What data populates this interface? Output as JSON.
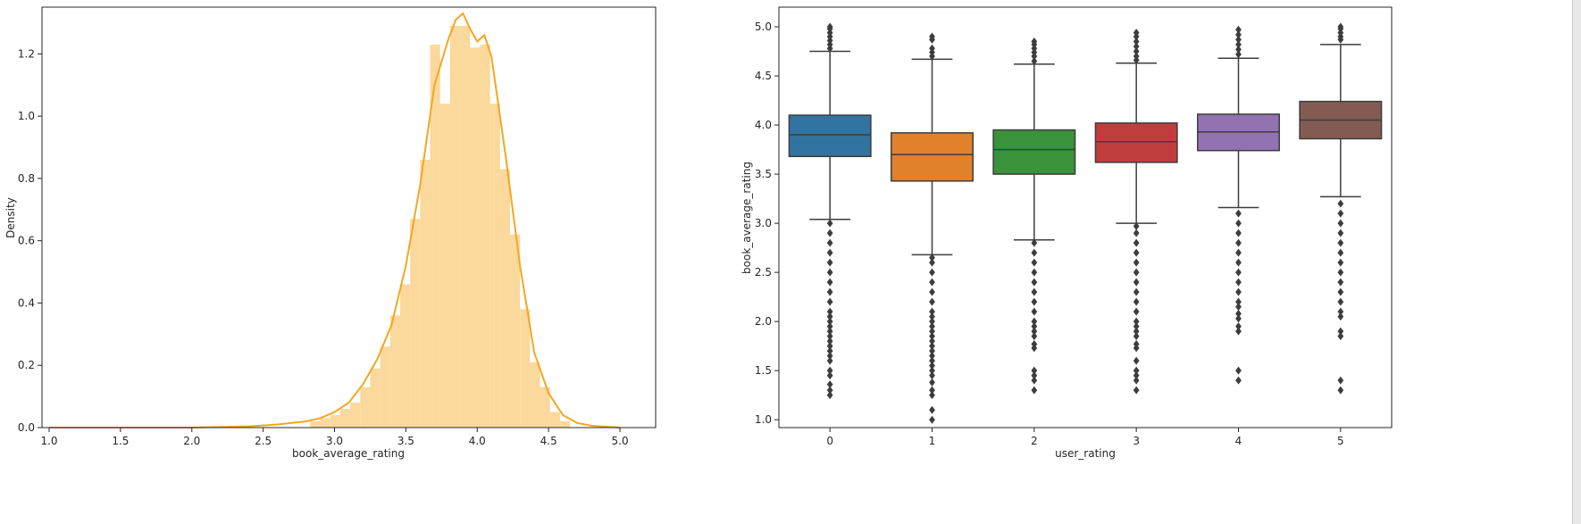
{
  "chart_data": [
    {
      "type": "histogram",
      "title": "",
      "xlabel": "book_average_rating",
      "ylabel": "Density",
      "xlim": [
        0.95,
        5.25
      ],
      "ylim": [
        0,
        1.35
      ],
      "xticks": [
        "1.0",
        "1.5",
        "2.0",
        "2.5",
        "3.0",
        "3.5",
        "4.0",
        "4.5",
        "5.0"
      ],
      "yticks": [
        "0.0",
        "0.2",
        "0.4",
        "0.6",
        "0.8",
        "1.0",
        "1.2"
      ],
      "bar_color": "#fbd89b",
      "line_color": "#f5a623",
      "bins": [
        [
          2.83,
          2.9,
          0.02
        ],
        [
          2.9,
          2.97,
          0.03
        ],
        [
          2.97,
          3.04,
          0.04
        ],
        [
          3.04,
          3.11,
          0.06
        ],
        [
          3.11,
          3.18,
          0.08
        ],
        [
          3.18,
          3.25,
          0.13
        ],
        [
          3.25,
          3.32,
          0.19
        ],
        [
          3.32,
          3.39,
          0.26
        ],
        [
          3.39,
          3.46,
          0.36
        ],
        [
          3.46,
          3.53,
          0.46
        ],
        [
          3.53,
          3.6,
          0.67
        ],
        [
          3.6,
          3.67,
          0.86
        ],
        [
          3.67,
          3.74,
          1.23
        ],
        [
          3.74,
          3.81,
          1.04
        ],
        [
          3.81,
          3.88,
          1.29
        ],
        [
          3.88,
          3.95,
          1.29
        ],
        [
          3.95,
          4.02,
          1.22
        ],
        [
          4.02,
          4.09,
          1.23
        ],
        [
          4.09,
          4.16,
          1.04
        ],
        [
          4.16,
          4.23,
          0.83
        ],
        [
          4.23,
          4.3,
          0.62
        ],
        [
          4.3,
          4.37,
          0.38
        ],
        [
          4.37,
          4.44,
          0.21
        ],
        [
          4.44,
          4.51,
          0.13
        ],
        [
          4.51,
          4.58,
          0.05
        ],
        [
          4.58,
          4.65,
          0.02
        ]
      ],
      "kde": [
        [
          1.0,
          0.0
        ],
        [
          1.5,
          0.0
        ],
        [
          2.0,
          0.0
        ],
        [
          2.4,
          0.004
        ],
        [
          2.6,
          0.01
        ],
        [
          2.8,
          0.02
        ],
        [
          2.9,
          0.03
        ],
        [
          3.0,
          0.05
        ],
        [
          3.1,
          0.08
        ],
        [
          3.2,
          0.14
        ],
        [
          3.3,
          0.22
        ],
        [
          3.4,
          0.33
        ],
        [
          3.5,
          0.52
        ],
        [
          3.6,
          0.78
        ],
        [
          3.7,
          1.1
        ],
        [
          3.8,
          1.25
        ],
        [
          3.85,
          1.31
        ],
        [
          3.9,
          1.33
        ],
        [
          3.95,
          1.28
        ],
        [
          4.0,
          1.24
        ],
        [
          4.05,
          1.26
        ],
        [
          4.1,
          1.19
        ],
        [
          4.2,
          0.87
        ],
        [
          4.3,
          0.52
        ],
        [
          4.4,
          0.24
        ],
        [
          4.5,
          0.11
        ],
        [
          4.6,
          0.04
        ],
        [
          4.7,
          0.015
        ],
        [
          4.8,
          0.006
        ],
        [
          5.0,
          0.0
        ]
      ]
    },
    {
      "type": "box",
      "title": "",
      "xlabel": "user_rating",
      "ylabel": "book_average_rating",
      "ylim": [
        0.92,
        5.2
      ],
      "categories": [
        "0",
        "1",
        "2",
        "3",
        "4",
        "5"
      ],
      "yticks": [
        "1.0",
        "1.5",
        "2.0",
        "2.5",
        "3.0",
        "3.5",
        "4.0",
        "4.5",
        "5.0"
      ],
      "boxes": [
        {
          "category": "0",
          "color": "#3274a1",
          "q1": 3.68,
          "median": 3.9,
          "q3": 4.1,
          "whisker_low": 3.04,
          "whisker_high": 4.75,
          "outliers_low": [
            1.25,
            1.3,
            1.36,
            1.45,
            1.5,
            1.6,
            1.65,
            1.7,
            1.75,
            1.8,
            1.85,
            1.9,
            1.95,
            2.0,
            2.05,
            2.1,
            2.2,
            2.3,
            2.4,
            2.5,
            2.6,
            2.7,
            2.8,
            2.9,
            3.0
          ],
          "outliers_high": [
            4.78,
            4.82,
            4.86,
            4.9,
            4.94,
            4.98,
            5.0
          ]
        },
        {
          "category": "1",
          "color": "#e1812c",
          "q1": 3.43,
          "median": 3.7,
          "q3": 3.92,
          "whisker_low": 2.68,
          "whisker_high": 4.67,
          "outliers_low": [
            1.0,
            1.1,
            1.25,
            1.3,
            1.38,
            1.45,
            1.5,
            1.55,
            1.6,
            1.65,
            1.7,
            1.75,
            1.8,
            1.85,
            1.9,
            1.95,
            2.0,
            2.05,
            2.1,
            2.2,
            2.3,
            2.4,
            2.5,
            2.6,
            2.65
          ],
          "outliers_high": [
            4.7,
            4.74,
            4.78,
            4.87,
            4.9
          ]
        },
        {
          "category": "2",
          "color": "#3a923a",
          "q1": 3.5,
          "median": 3.75,
          "q3": 3.95,
          "whisker_low": 2.83,
          "whisker_high": 4.62,
          "outliers_low": [
            1.3,
            1.4,
            1.45,
            1.5,
            1.73,
            1.77,
            1.85,
            1.9,
            1.95,
            2.0,
            2.1,
            2.2,
            2.3,
            2.4,
            2.5,
            2.6,
            2.7,
            2.8
          ],
          "outliers_high": [
            4.65,
            4.7,
            4.74,
            4.78,
            4.82,
            4.85
          ]
        },
        {
          "category": "3",
          "color": "#c03d3e",
          "q1": 3.62,
          "median": 3.83,
          "q3": 4.02,
          "whisker_low": 3.0,
          "whisker_high": 4.63,
          "outliers_low": [
            1.3,
            1.4,
            1.45,
            1.5,
            1.6,
            1.73,
            1.77,
            1.85,
            1.9,
            1.95,
            2.0,
            2.1,
            2.2,
            2.3,
            2.4,
            2.5,
            2.6,
            2.7,
            2.8,
            2.9,
            2.97
          ],
          "outliers_high": [
            4.66,
            4.7,
            4.75,
            4.8,
            4.85,
            4.9,
            4.94
          ]
        },
        {
          "category": "4",
          "color": "#9372b2",
          "q1": 3.74,
          "median": 3.93,
          "q3": 4.11,
          "whisker_low": 3.16,
          "whisker_high": 4.68,
          "outliers_low": [
            1.4,
            1.5,
            1.9,
            1.95,
            2.03,
            2.08,
            2.15,
            2.2,
            2.3,
            2.4,
            2.5,
            2.6,
            2.7,
            2.8,
            2.9,
            3.0,
            3.1
          ],
          "outliers_high": [
            4.72,
            4.77,
            4.82,
            4.87,
            4.92,
            4.97
          ]
        },
        {
          "category": "5",
          "color": "#845b53",
          "q1": 3.86,
          "median": 4.05,
          "q3": 4.24,
          "whisker_low": 3.27,
          "whisker_high": 4.82,
          "outliers_low": [
            1.3,
            1.4,
            1.85,
            1.9,
            2.05,
            2.1,
            2.2,
            2.3,
            2.4,
            2.5,
            2.6,
            2.7,
            2.8,
            2.9,
            3.0,
            3.1,
            3.2
          ],
          "outliers_high": [
            4.87,
            4.9,
            4.94,
            4.98,
            5.0
          ]
        }
      ]
    }
  ]
}
